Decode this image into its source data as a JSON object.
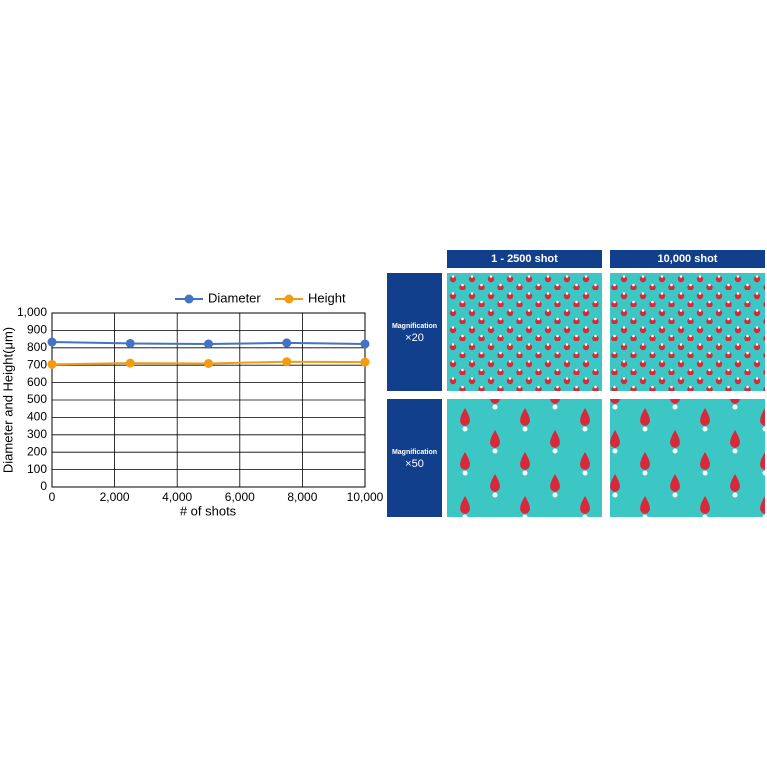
{
  "chart_data": {
    "type": "line",
    "xlabel": "# of shots",
    "ylabel": "Diameter and Height(μm)",
    "x": [
      0,
      2500,
      5000,
      7500,
      10000
    ],
    "series": [
      {
        "name": "Diameter",
        "color": "#4472c4",
        "values": [
          833,
          825,
          822,
          828,
          822
        ]
      },
      {
        "name": "Height",
        "color": "#f39c12",
        "values": [
          705,
          712,
          710,
          720,
          718
        ]
      }
    ],
    "xlim": [
      0,
      10000
    ],
    "xticks": [
      0,
      {
        "value": 2000,
        "label": "2,000"
      },
      {
        "value": 4000,
        "label": "4,000"
      },
      {
        "value": 6000,
        "label": "6,000"
      },
      {
        "value": 8000,
        "label": "8,000"
      },
      {
        "value": 10000,
        "label": "10,000"
      }
    ],
    "ylim": [
      0,
      1000
    ],
    "yticks": [
      0,
      100,
      200,
      300,
      400,
      500,
      600,
      700,
      800,
      900,
      {
        "value": 1000,
        "label": "1,000"
      }
    ],
    "grid": true,
    "legend": "top"
  },
  "panel": {
    "columns": [
      "1 - 2500 shot",
      "10,000 shot"
    ],
    "rows": [
      {
        "label": "Magnification",
        "magnification": "×20"
      },
      {
        "label": "Magnification",
        "magnification": "×50"
      }
    ]
  }
}
